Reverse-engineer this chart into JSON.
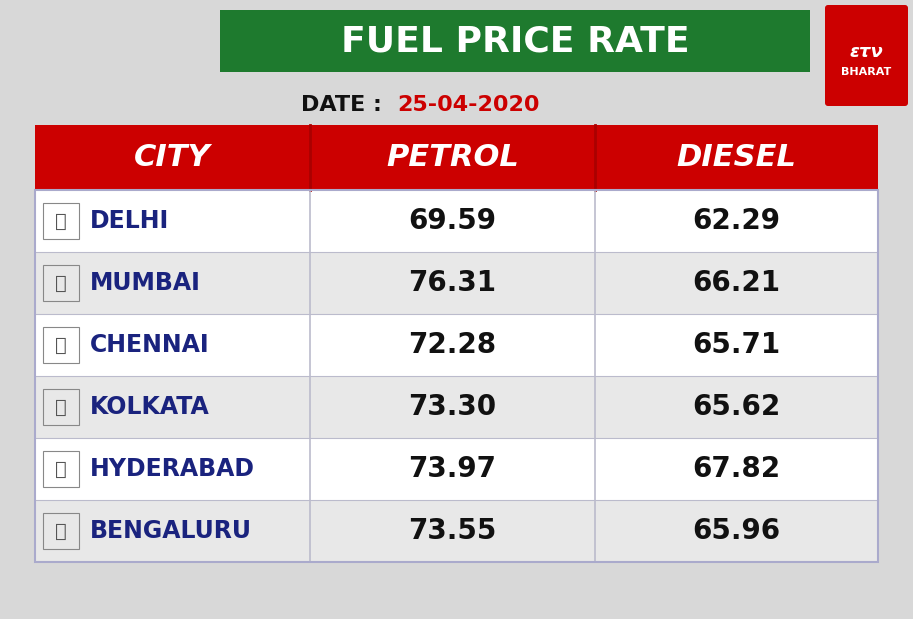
{
  "title": "FUEL PRICE RATE",
  "date_label": "DATE : ",
  "date_value": "25-04-2020",
  "header_city": "CITY",
  "header_petrol": "PETROL",
  "header_diesel": "DIESEL",
  "cities": [
    "DELHI",
    "MUMBAI",
    "CHENNAI",
    "KOLKATA",
    "HYDERABAD",
    "BENGALURU"
  ],
  "petrol": [
    69.59,
    76.31,
    72.28,
    73.3,
    73.97,
    73.55
  ],
  "diesel": [
    62.29,
    66.21,
    65.71,
    65.62,
    67.82,
    65.96
  ],
  "bg_color": "#d8d8d8",
  "title_bg_color": "#1e7a2e",
  "title_text_color": "#ffffff",
  "header_bg_color": "#cc0000",
  "header_text_color": "#ffffff",
  "city_text_color": "#1a237e",
  "value_text_color": "#111111",
  "date_label_color": "#111111",
  "date_value_color": "#cc0000",
  "table_border_color": "#aaaacc",
  "row_bg_even": "#ffffff",
  "row_bg_odd": "#e8e8e8",
  "etv_logo_bg": "#cc0000",
  "col_divider_color": "#bbbbcc"
}
